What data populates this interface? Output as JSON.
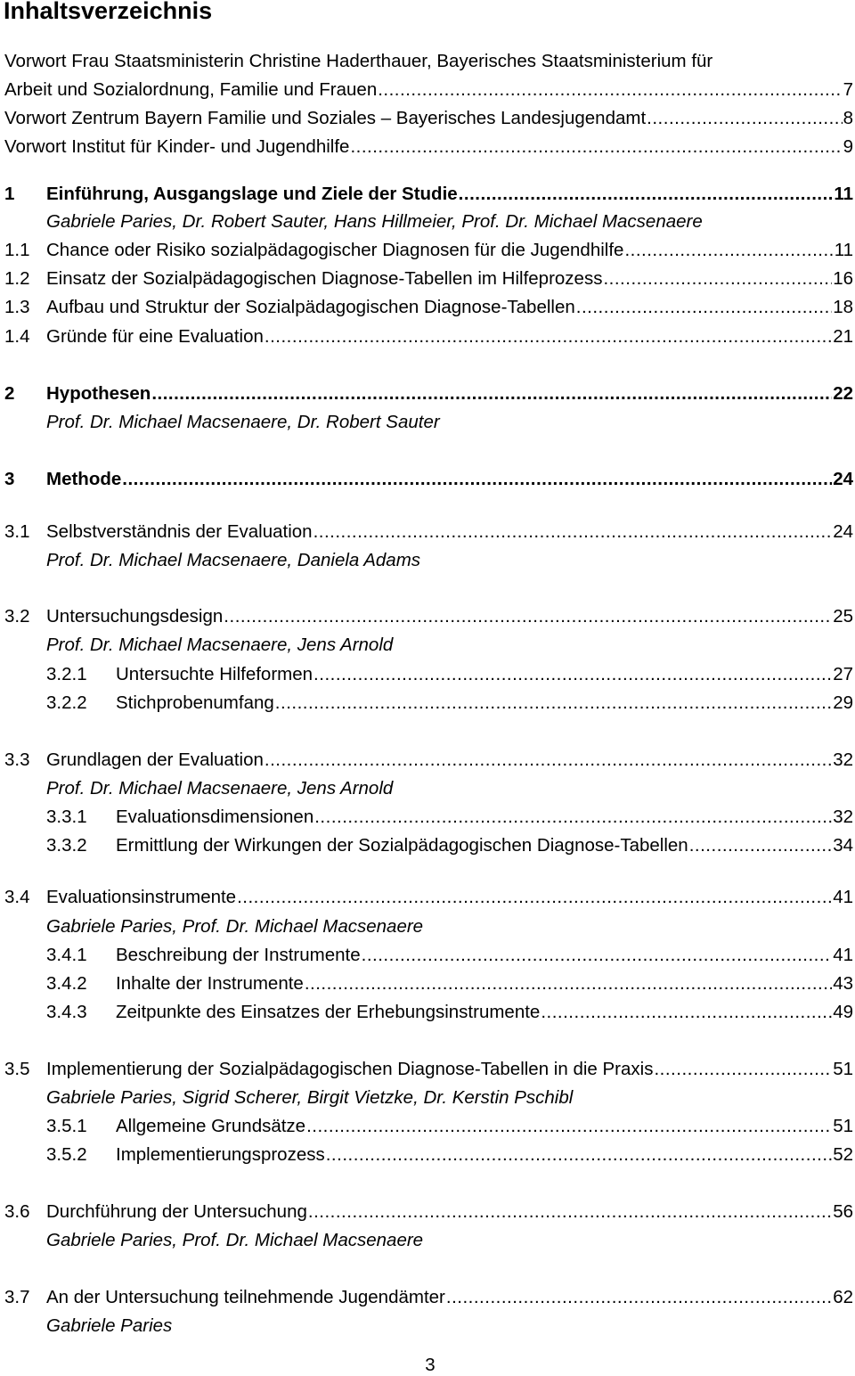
{
  "title": "Inhaltsverzeichnis",
  "entries": [
    {
      "type": "plain",
      "lines": [
        "Vorwort Frau Staatsministerin Christine Haderthauer, Bayerisches Staatsministerium für",
        "Arbeit und Sozialordnung, Familie und Frauen"
      ],
      "page": "7"
    },
    {
      "type": "plain",
      "title": "Vorwort Zentrum Bayern Familie und Soziales – Bayerisches Landesjugendamt",
      "page": "8"
    },
    {
      "type": "plain",
      "title": "Vorwort Institut für Kinder- und Jugendhilfe",
      "page": "9"
    },
    {
      "type": "l1",
      "num": "1",
      "title": "Einführung, Ausgangslage und Ziele der Studie",
      "page": "11"
    },
    {
      "type": "author",
      "title": "Gabriele Paries, Dr. Robert Sauter, Hans Hillmeier, Prof. Dr. Michael Macsenaere"
    },
    {
      "type": "l2",
      "num": "1.1",
      "title": "Chance oder Risiko sozialpädagogischer Diagnosen für die Jugendhilfe",
      "page": "11"
    },
    {
      "type": "l2",
      "num": "1.2",
      "title": "Einsatz der Sozialpädagogischen Diagnose-Tabellen im Hilfeprozess",
      "page": "16"
    },
    {
      "type": "l2",
      "num": "1.3",
      "title": "Aufbau und Struktur der Sozialpädagogischen Diagnose-Tabellen",
      "page": "18"
    },
    {
      "type": "l2",
      "num": "1.4",
      "title": "Gründe für eine Evaluation",
      "page": "21"
    },
    {
      "type": "l1",
      "num": "2",
      "title": "Hypothesen",
      "page": "22"
    },
    {
      "type": "author",
      "title": "Prof. Dr. Michael Macsenaere, Dr. Robert Sauter"
    },
    {
      "type": "l1",
      "num": "3",
      "title": "Methode",
      "page": "24"
    },
    {
      "type": "l2",
      "num": "3.1",
      "title": "Selbstverständnis der Evaluation",
      "page": "24"
    },
    {
      "type": "author",
      "title": "Prof. Dr. Michael Macsenaere, Daniela Adams"
    },
    {
      "type": "l2",
      "num": "3.2",
      "title": "Untersuchungsdesign",
      "page": "25"
    },
    {
      "type": "author",
      "title": "Prof. Dr. Michael Macsenaere, Jens Arnold"
    },
    {
      "type": "l3",
      "num": "3.2.1",
      "title": "Untersuchte Hilfeformen",
      "page": "27"
    },
    {
      "type": "l3",
      "num": "3.2.2",
      "title": "Stichprobenumfang",
      "page": "29"
    },
    {
      "type": "l2",
      "num": "3.3",
      "title": "Grundlagen der Evaluation",
      "page": "32"
    },
    {
      "type": "author",
      "title": "Prof. Dr. Michael Macsenaere, Jens Arnold"
    },
    {
      "type": "l3",
      "num": "3.3.1",
      "title": "Evaluationsdimensionen",
      "page": "32"
    },
    {
      "type": "l3",
      "num": "3.3.2",
      "title": "Ermittlung der Wirkungen der Sozialpädagogischen Diagnose-Tabellen",
      "page": "34"
    },
    {
      "type": "l2",
      "num": "3.4",
      "title": "Evaluationsinstrumente",
      "page": "41"
    },
    {
      "type": "author",
      "title": "Gabriele Paries, Prof. Dr. Michael Macsenaere"
    },
    {
      "type": "l3",
      "num": "3.4.1",
      "title": "Beschreibung der Instrumente",
      "page": "41"
    },
    {
      "type": "l3",
      "num": "3.4.2",
      "title": "Inhalte der Instrumente",
      "page": "43"
    },
    {
      "type": "l3",
      "num": "3.4.3",
      "title": "Zeitpunkte des Einsatzes der Erhebungsinstrumente",
      "page": "49"
    },
    {
      "type": "l2",
      "num": "3.5",
      "title": "Implementierung der Sozialpädagogischen Diagnose-Tabellen in die Praxis",
      "page": "51"
    },
    {
      "type": "author",
      "title": "Gabriele Paries, Sigrid Scherer, Birgit Vietzke, Dr. Kerstin Pschibl"
    },
    {
      "type": "l3",
      "num": "3.5.1",
      "title": "Allgemeine Grundsätze",
      "page": "51"
    },
    {
      "type": "l3",
      "num": "3.5.2",
      "title": "Implementierungsprozess",
      "page": "52"
    },
    {
      "type": "l2",
      "num": "3.6",
      "title": "Durchführung der Untersuchung",
      "page": "56"
    },
    {
      "type": "author",
      "title": "Gabriele Paries, Prof. Dr. Michael Macsenaere"
    },
    {
      "type": "l2",
      "num": "3.7",
      "title": "An der Untersuchung teilnehmende Jugendämter",
      "page": "62"
    },
    {
      "type": "author",
      "title": "Gabriele Paries"
    }
  ],
  "page_number": "3"
}
